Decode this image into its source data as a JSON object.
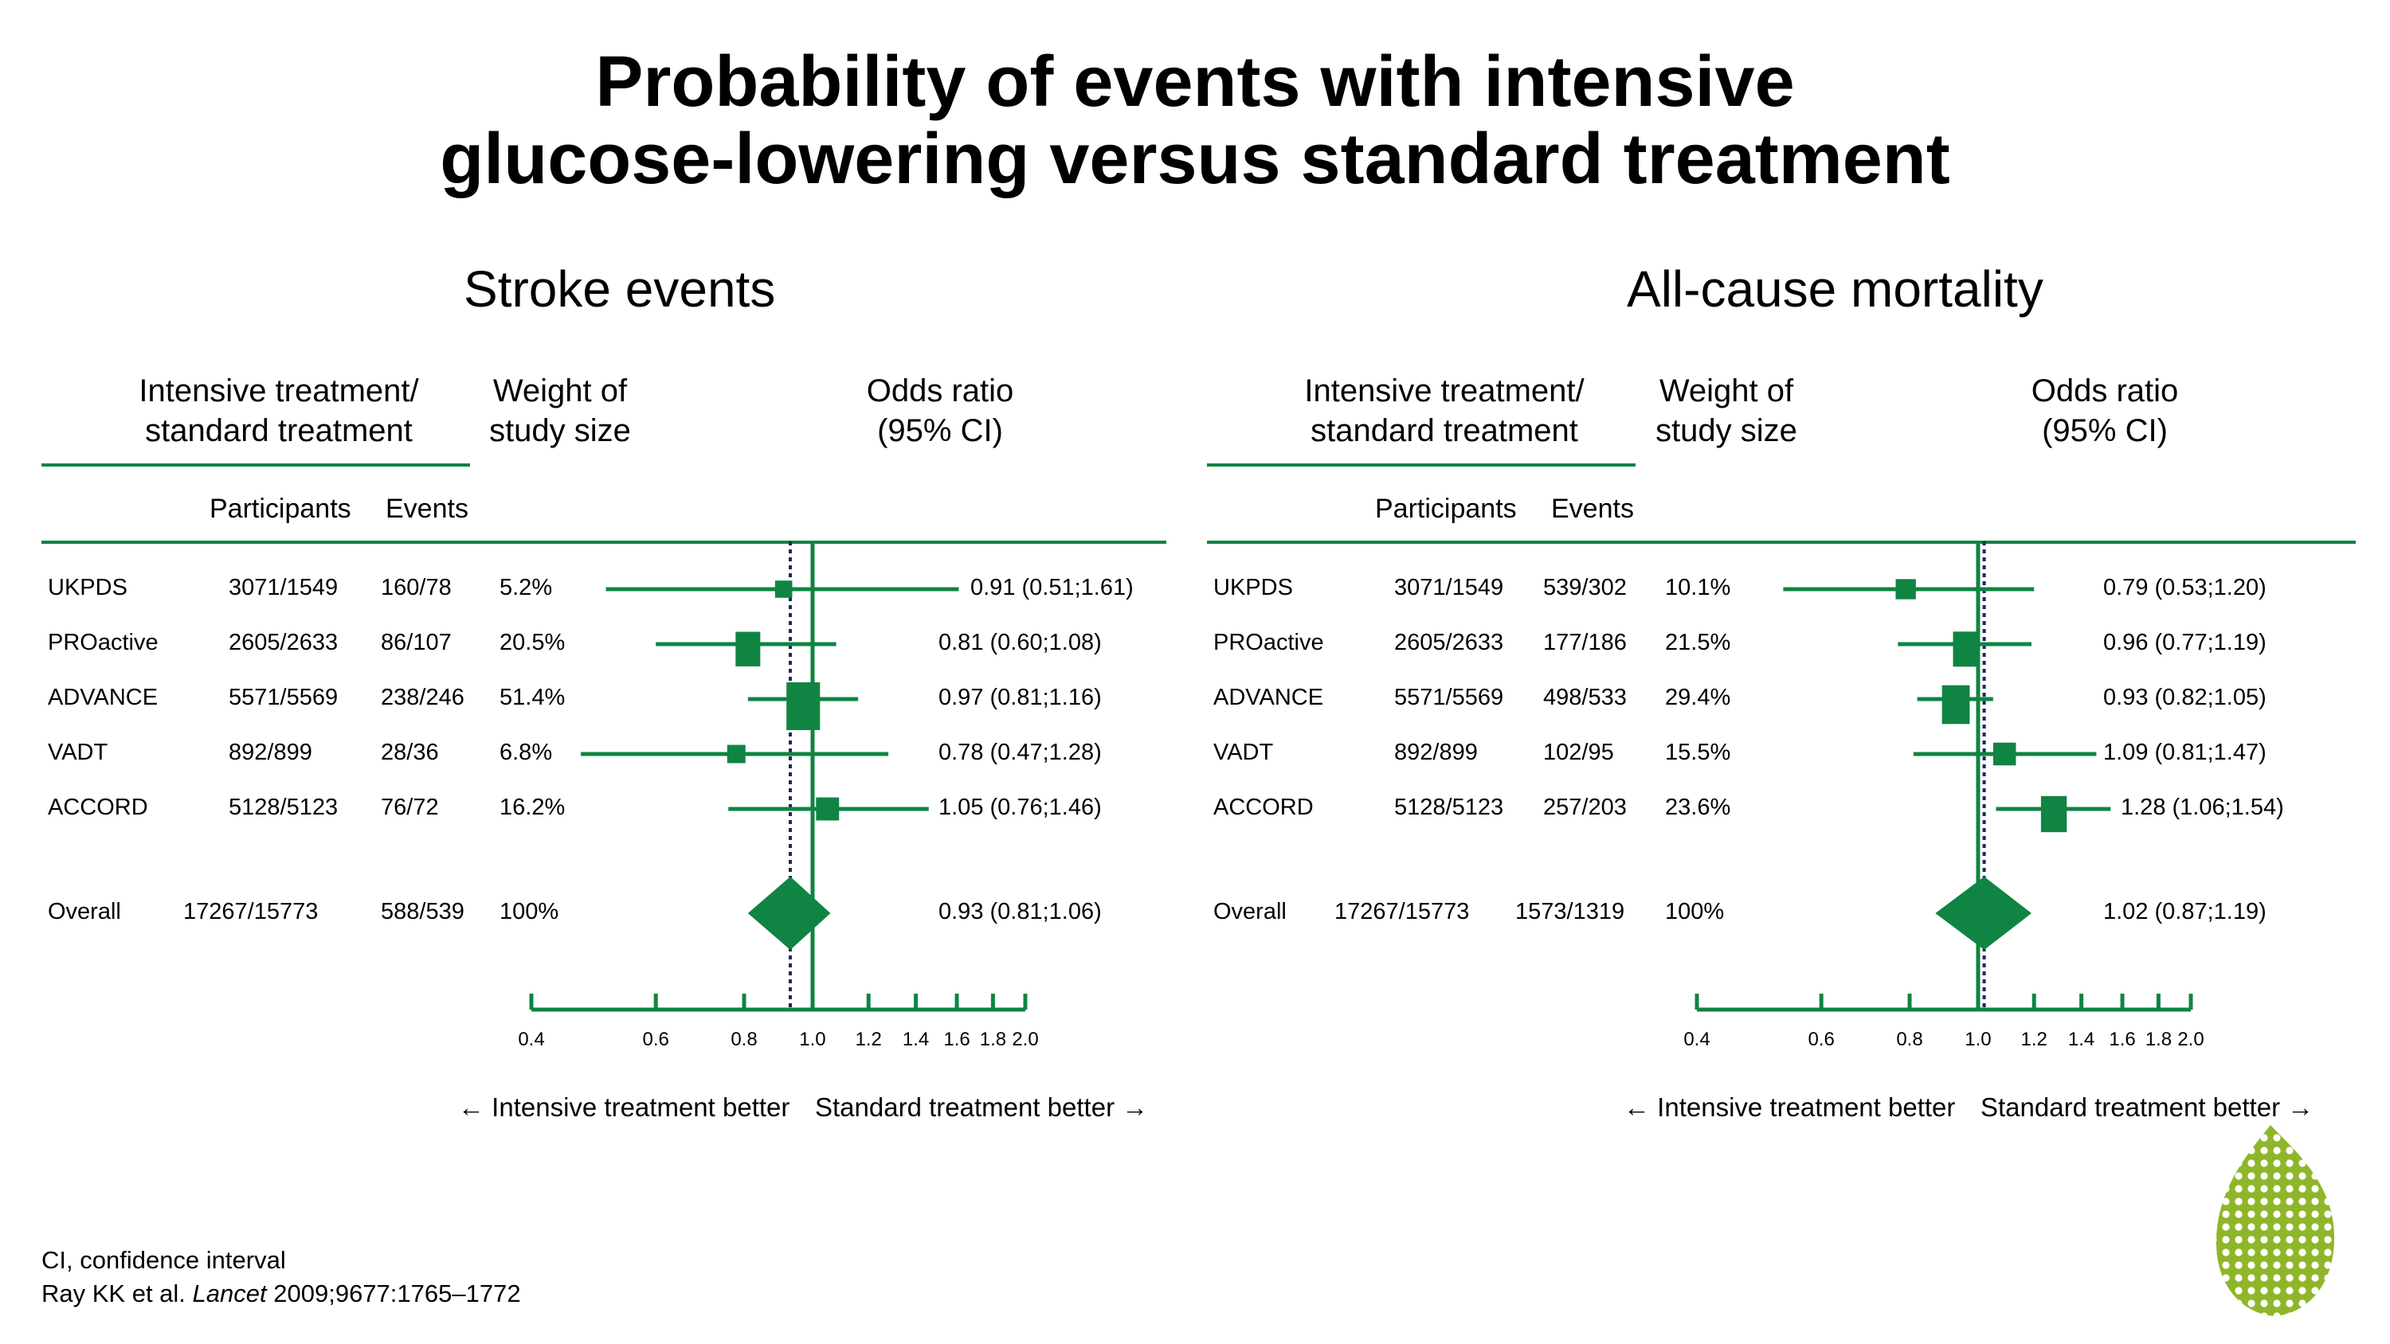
{
  "title_line1": "Probability of events with intensive",
  "title_line2": "glucose-lowering versus standard treatment",
  "colors": {
    "accent": "#108442",
    "reference_line": "#1b2a5a",
    "text": "#000000",
    "logo_green": "#8fb62a"
  },
  "headers": {
    "treatment_line1": "Intensive treatment/",
    "treatment_line2": "standard treatment",
    "weight_line1": "Weight of",
    "weight_line2": "study size",
    "odds_line1": "Odds ratio",
    "odds_line2": "(95% CI)",
    "participants": "Participants",
    "events": "Events"
  },
  "direction": {
    "left": "← Intensive treatment better",
    "right": "Standard treatment better →"
  },
  "footnote": {
    "line1": "CI, confidence interval",
    "line2_author": "Ray KK et al.",
    "line2_journal": "Lancet",
    "line2_rest": "2009;9677:1765–1772"
  },
  "icons": {
    "logo": "leaf-logo-icon"
  },
  "chart_data": [
    {
      "type": "forest",
      "title": "Stroke events",
      "xlabel": "",
      "x_scale": "log",
      "xlim": [
        0.4,
        2.0
      ],
      "ticks": [
        "0.4",
        "0.6",
        "0.8",
        "1.0",
        "1.2",
        "1.4",
        "1.6",
        "1.8",
        "2.0"
      ],
      "null_value": 1.0,
      "pooled_value": 0.93,
      "rows": [
        {
          "study": "UKPDS",
          "participants": "3071/1549",
          "events": "160/78",
          "weight": "5.2%",
          "ci_text": "0.91 (0.51;1.61)",
          "or": 0.91,
          "lo": 0.51,
          "hi": 1.61,
          "w": 5.2
        },
        {
          "study": "PROactive",
          "participants": "2605/2633",
          "events": "86/107",
          "weight": "20.5%",
          "ci_text": "0.81 (0.60;1.08)",
          "or": 0.81,
          "lo": 0.6,
          "hi": 1.08,
          "w": 20.5
        },
        {
          "study": "ADVANCE",
          "participants": "5571/5569",
          "events": "238/246",
          "weight": "51.4%",
          "ci_text": "0.97 (0.81;1.16)",
          "or": 0.97,
          "lo": 0.81,
          "hi": 1.16,
          "w": 51.4
        },
        {
          "study": "VADT",
          "participants": "892/899",
          "events": "28/36",
          "weight": "6.8%",
          "ci_text": "0.78 (0.47;1.28)",
          "or": 0.78,
          "lo": 0.47,
          "hi": 1.28,
          "w": 6.8
        },
        {
          "study": "ACCORD",
          "participants": "5128/5123",
          "events": "76/72",
          "weight": "16.2%",
          "ci_text": "1.05 (0.76;1.46)",
          "or": 1.05,
          "lo": 0.76,
          "hi": 1.46,
          "w": 16.2
        }
      ],
      "overall": {
        "study": "Overall",
        "participants": "17267/15773",
        "events": "588/539",
        "weight": "100%",
        "ci_text": "0.93 (0.81;1.06)",
        "or": 0.93,
        "lo": 0.81,
        "hi": 1.06
      }
    },
    {
      "type": "forest",
      "title": "All-cause mortality",
      "xlabel": "",
      "x_scale": "log",
      "xlim": [
        0.4,
        2.0
      ],
      "ticks": [
        "0.4",
        "0.6",
        "0.8",
        "1.0",
        "1.2",
        "1.4",
        "1.6",
        "1.8",
        "2.0"
      ],
      "null_value": 1.0,
      "pooled_value": 1.02,
      "rows": [
        {
          "study": "UKPDS",
          "participants": "3071/1549",
          "events": "539/302",
          "weight": "10.1%",
          "ci_text": "0.79 (0.53;1.20)",
          "or": 0.79,
          "lo": 0.53,
          "hi": 1.2,
          "w": 10.1
        },
        {
          "study": "PROactive",
          "participants": "2605/2633",
          "events": "177/186",
          "weight": "21.5%",
          "ci_text": "0.96 (0.77;1.19)",
          "or": 0.96,
          "lo": 0.77,
          "hi": 1.19,
          "w": 21.5
        },
        {
          "study": "ADVANCE",
          "participants": "5571/5569",
          "events": "498/533",
          "weight": "29.4%",
          "ci_text": "0.93 (0.82;1.05)",
          "or": 0.93,
          "lo": 0.82,
          "hi": 1.05,
          "w": 29.4
        },
        {
          "study": "VADT",
          "participants": "892/899",
          "events": "102/95",
          "weight": "15.5%",
          "ci_text": "1.09 (0.81;1.47)",
          "or": 1.09,
          "lo": 0.81,
          "hi": 1.47,
          "w": 15.5
        },
        {
          "study": "ACCORD",
          "participants": "5128/5123",
          "events": "257/203",
          "weight": "23.6%",
          "ci_text": "1.28 (1.06;1.54)",
          "or": 1.28,
          "lo": 1.06,
          "hi": 1.54,
          "w": 23.6
        }
      ],
      "overall": {
        "study": "Overall",
        "participants": "17267/15773",
        "events": "1573/1319",
        "weight": "100%",
        "ci_text": "1.02 (0.87;1.19)",
        "or": 1.02,
        "lo": 0.87,
        "hi": 1.19
      }
    }
  ]
}
